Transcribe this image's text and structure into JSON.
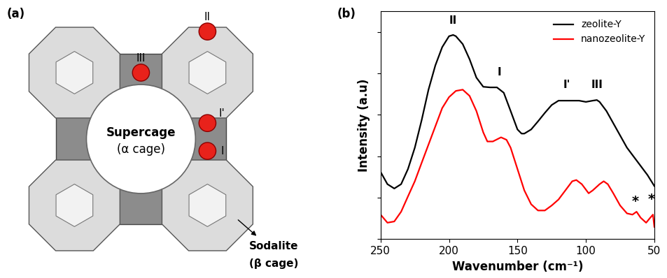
{
  "diagram": {
    "panel_label": "(a)",
    "supercage": "Supercage",
    "supercage_alt": "(α cage)",
    "sodalite": "Sodalite",
    "sodalite_alt": "(β cage)",
    "sites": [
      "II",
      "III",
      "I'",
      "I"
    ]
  },
  "chart_data": {
    "type": "line",
    "panel_label": "(b)",
    "xlabel": "Wavenumber (cm⁻¹)",
    "ylabel": "Intensity (a.u)",
    "xlim": [
      250,
      50
    ],
    "xticks": [
      250,
      200,
      150,
      100,
      50
    ],
    "ylim": [
      0,
      11
    ],
    "yticks": [
      0,
      2,
      4,
      6,
      8,
      10
    ],
    "tick_labels": "x",
    "legend": "upper right",
    "series": [
      {
        "name": "zeolite-Y",
        "color": "#000000",
        "x": [
          250,
          245,
          240,
          235,
          230,
          225,
          220,
          215,
          210,
          205,
          200,
          197,
          195,
          190,
          185,
          180,
          175,
          170,
          165,
          160,
          155,
          150,
          147,
          145,
          140,
          135,
          130,
          125,
          120,
          115,
          110,
          105,
          100,
          95,
          92,
          90,
          85,
          80,
          75,
          70,
          65,
          60,
          55,
          50
        ],
        "values": [
          3.24,
          2.65,
          2.44,
          2.65,
          3.38,
          4.41,
          5.74,
          7.21,
          8.38,
          9.26,
          9.79,
          9.85,
          9.79,
          9.41,
          8.68,
          7.79,
          7.35,
          7.32,
          7.32,
          7.06,
          6.18,
          5.29,
          5.09,
          5.09,
          5.29,
          5.68,
          6.09,
          6.47,
          6.68,
          6.68,
          6.68,
          6.68,
          6.62,
          6.68,
          6.71,
          6.62,
          6.18,
          5.59,
          5.0,
          4.41,
          3.97,
          3.53,
          3.09,
          2.56
        ]
      },
      {
        "name": "nanozeolite-Y",
        "color": "#ff0000",
        "x": [
          250,
          245,
          240,
          235,
          230,
          225,
          220,
          215,
          210,
          205,
          200,
          195,
          190,
          185,
          180,
          175,
          172,
          168,
          162,
          158,
          155,
          150,
          145,
          140,
          135,
          130,
          125,
          120,
          115,
          110,
          107,
          103,
          98,
          95,
          90,
          87,
          84,
          80,
          75,
          70,
          66,
          63,
          60,
          56,
          53,
          51,
          50
        ],
        "values": [
          1.18,
          0.79,
          0.85,
          1.32,
          2.06,
          2.79,
          3.68,
          4.56,
          5.44,
          6.32,
          6.85,
          7.15,
          7.21,
          6.91,
          6.18,
          5.15,
          4.71,
          4.71,
          4.91,
          4.79,
          4.41,
          3.38,
          2.35,
          1.68,
          1.38,
          1.38,
          1.62,
          1.91,
          2.35,
          2.79,
          2.85,
          2.65,
          2.21,
          2.35,
          2.65,
          2.79,
          2.65,
          2.21,
          1.62,
          1.24,
          1.18,
          1.32,
          1.03,
          0.79,
          1.03,
          1.18,
          0.59
        ]
      }
    ],
    "annotations": [
      {
        "text": "II",
        "x": 197,
        "y": 10.3
      },
      {
        "text": "I",
        "x": 163,
        "y": 7.8
      },
      {
        "text": "I'",
        "x": 114,
        "y": 7.2
      },
      {
        "text": "III",
        "x": 92,
        "y": 7.2
      },
      {
        "text": "*",
        "x": 64,
        "y": 1.5
      },
      {
        "text": "*",
        "x": 52,
        "y": 1.6
      }
    ]
  }
}
